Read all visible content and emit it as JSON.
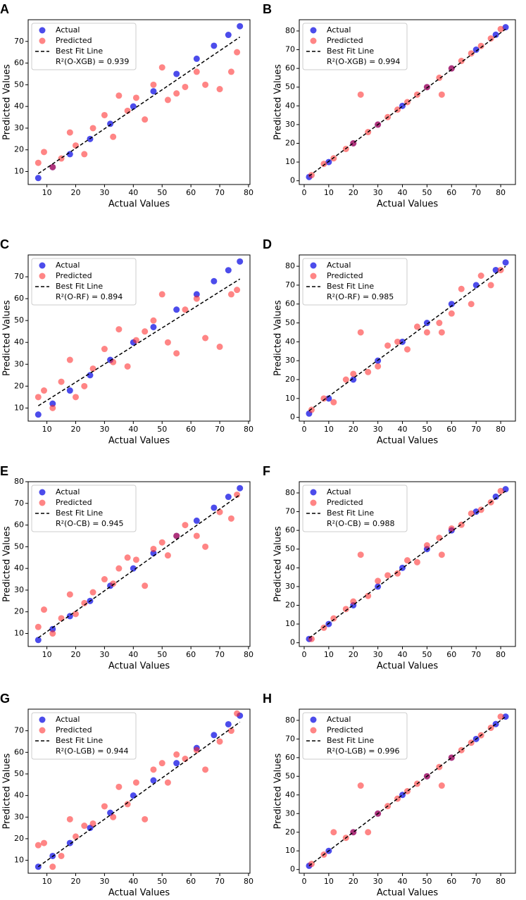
{
  "chart_data": [
    {
      "type": "scatter",
      "panel_label": "A",
      "xlabel": "Actual Values",
      "ylabel": "Predicted Values",
      "annotation": "R²(O-XGB) = 0.939",
      "xlim": [
        3.5,
        80.5
      ],
      "xticks": [
        10,
        20,
        30,
        40,
        50,
        60,
        70,
        80
      ],
      "ylim": [
        4,
        80
      ],
      "yticks": [
        10,
        20,
        30,
        40,
        50,
        60,
        70
      ],
      "legend": "upper left",
      "series": [
        {
          "name": "Actual",
          "kind": "scatter",
          "color": "#1f1fe6",
          "x": [
            7,
            12,
            18,
            25,
            32,
            40,
            47,
            55,
            62,
            68,
            73,
            77
          ],
          "values": [
            7,
            12,
            18,
            25,
            32,
            40,
            47,
            55,
            62,
            68,
            73,
            77
          ]
        },
        {
          "name": "Predicted",
          "kind": "scatter",
          "color": "#ff2020",
          "x": [
            7,
            9,
            12,
            15,
            18,
            20,
            23,
            26,
            30,
            33,
            35,
            38,
            41,
            44,
            47,
            50,
            52,
            55,
            58,
            62,
            65,
            70,
            74,
            76
          ],
          "values": [
            14,
            19,
            12,
            16,
            28,
            22,
            18,
            30,
            36,
            26,
            45,
            38,
            44,
            34,
            50,
            58,
            43,
            46,
            49,
            56,
            50,
            48,
            56,
            65
          ]
        },
        {
          "name": "Best Fit Line",
          "kind": "line",
          "color": "#000000",
          "x": [
            7,
            77
          ],
          "values": [
            9,
            72
          ]
        }
      ]
    },
    {
      "type": "scatter",
      "panel_label": "B",
      "xlabel": "Actual Values",
      "ylabel": "Predicted Values",
      "annotation": "R²(O-XGB) = 0.994",
      "xlim": [
        -2,
        86
      ],
      "xticks": [
        0,
        10,
        20,
        30,
        40,
        50,
        60,
        70,
        80
      ],
      "ylim": [
        -2,
        86
      ],
      "yticks": [
        0,
        10,
        20,
        30,
        40,
        50,
        60,
        70,
        80
      ],
      "legend": "upper left",
      "series": [
        {
          "name": "Actual",
          "kind": "scatter",
          "color": "#1f1fe6",
          "x": [
            2,
            10,
            20,
            30,
            40,
            50,
            60,
            70,
            78,
            82
          ],
          "values": [
            2,
            10,
            20,
            30,
            40,
            50,
            60,
            70,
            78,
            82
          ]
        },
        {
          "name": "Predicted",
          "kind": "scatter",
          "color": "#ff2020",
          "x": [
            3,
            8,
            12,
            17,
            20,
            23,
            26,
            30,
            34,
            38,
            42,
            46,
            50,
            55,
            56,
            60,
            64,
            68,
            72,
            76,
            80
          ],
          "values": [
            3,
            9,
            12,
            17,
            20,
            46,
            26,
            30,
            34,
            38,
            42,
            46,
            50,
            55,
            46,
            60,
            64,
            68,
            72,
            76,
            81
          ]
        },
        {
          "name": "Best Fit Line",
          "kind": "line",
          "color": "#000000",
          "x": [
            2,
            82
          ],
          "values": [
            2.5,
            81
          ]
        }
      ]
    },
    {
      "type": "scatter",
      "panel_label": "C",
      "xlabel": "Actual Values",
      "ylabel": "Predicted Values",
      "annotation": "R²(O-RF) = 0.894",
      "xlim": [
        3.5,
        80.5
      ],
      "xticks": [
        10,
        20,
        30,
        40,
        50,
        60,
        70,
        80
      ],
      "ylim": [
        4,
        80
      ],
      "yticks": [
        10,
        20,
        30,
        40,
        50,
        60,
        70
      ],
      "legend": "upper left",
      "series": [
        {
          "name": "Actual",
          "kind": "scatter",
          "color": "#1f1fe6",
          "x": [
            7,
            12,
            18,
            25,
            32,
            40,
            47,
            55,
            62,
            68,
            73,
            77
          ],
          "values": [
            7,
            12,
            18,
            25,
            32,
            40,
            47,
            55,
            62,
            68,
            73,
            77
          ]
        },
        {
          "name": "Predicted",
          "kind": "scatter",
          "color": "#ff2020",
          "x": [
            7,
            9,
            12,
            15,
            18,
            20,
            23,
            26,
            30,
            33,
            35,
            38,
            41,
            44,
            47,
            50,
            52,
            55,
            58,
            62,
            65,
            70,
            74,
            76
          ],
          "values": [
            15,
            18,
            10,
            22,
            32,
            15,
            20,
            28,
            37,
            31,
            46,
            29,
            41,
            45,
            50,
            62,
            40,
            35,
            55,
            60,
            42,
            38,
            62,
            64
          ]
        },
        {
          "name": "Best Fit Line",
          "kind": "line",
          "color": "#000000",
          "x": [
            7,
            77
          ],
          "values": [
            11,
            69
          ]
        }
      ]
    },
    {
      "type": "scatter",
      "panel_label": "D",
      "xlabel": "Actual Values",
      "ylabel": "Predicted Values",
      "annotation": "R²(O-RF) = 0.985",
      "xlim": [
        -2,
        86
      ],
      "xticks": [
        0,
        10,
        20,
        30,
        40,
        50,
        60,
        70,
        80
      ],
      "ylim": [
        -2,
        86
      ],
      "yticks": [
        0,
        10,
        20,
        30,
        40,
        50,
        60,
        70,
        80
      ],
      "legend": "upper left",
      "series": [
        {
          "name": "Actual",
          "kind": "scatter",
          "color": "#1f1fe6",
          "x": [
            2,
            10,
            20,
            30,
            40,
            50,
            60,
            70,
            78,
            82
          ],
          "values": [
            2,
            10,
            20,
            30,
            40,
            50,
            60,
            70,
            78,
            82
          ]
        },
        {
          "name": "Predicted",
          "kind": "scatter",
          "color": "#ff2020",
          "x": [
            3,
            8,
            12,
            17,
            20,
            23,
            26,
            30,
            34,
            38,
            42,
            46,
            50,
            55,
            56,
            60,
            64,
            68,
            72,
            76,
            80
          ],
          "values": [
            4,
            10,
            8,
            20,
            23,
            45,
            24,
            27,
            38,
            40,
            36,
            48,
            45,
            50,
            45,
            55,
            68,
            60,
            75,
            70,
            78
          ]
        },
        {
          "name": "Best Fit Line",
          "kind": "line",
          "color": "#000000",
          "x": [
            2,
            82
          ],
          "values": [
            3.5,
            80
          ]
        }
      ]
    },
    {
      "type": "scatter",
      "panel_label": "E",
      "xlabel": "Actual Values",
      "ylabel": "Predicted Values",
      "annotation": "R²(O-CB) = 0.945",
      "xlim": [
        3.5,
        80.5
      ],
      "xticks": [
        10,
        20,
        30,
        40,
        50,
        60,
        70,
        80
      ],
      "ylim": [
        4,
        80
      ],
      "yticks": [
        10,
        20,
        30,
        40,
        50,
        60,
        70,
        80
      ],
      "legend": "upper left",
      "series": [
        {
          "name": "Actual",
          "kind": "scatter",
          "color": "#1f1fe6",
          "x": [
            7,
            12,
            18,
            25,
            32,
            40,
            47,
            55,
            62,
            68,
            73,
            77
          ],
          "values": [
            7,
            12,
            18,
            25,
            32,
            40,
            47,
            55,
            62,
            68,
            73,
            77
          ]
        },
        {
          "name": "Predicted",
          "kind": "scatter",
          "color": "#ff2020",
          "x": [
            7,
            9,
            12,
            15,
            18,
            20,
            23,
            26,
            30,
            33,
            35,
            38,
            41,
            44,
            47,
            50,
            52,
            55,
            58,
            62,
            65,
            70,
            74,
            76
          ],
          "values": [
            13,
            21,
            10,
            17,
            28,
            19,
            24,
            29,
            35,
            33,
            40,
            45,
            44,
            32,
            49,
            52,
            46,
            55,
            60,
            55,
            50,
            66,
            63,
            74
          ]
        },
        {
          "name": "Best Fit Line",
          "kind": "line",
          "color": "#000000",
          "x": [
            7,
            77
          ],
          "values": [
            8,
            74
          ]
        }
      ]
    },
    {
      "type": "scatter",
      "panel_label": "F",
      "xlabel": "Actual Values",
      "ylabel": "Predicted Values",
      "annotation": "R²(O-CB) = 0.988",
      "xlim": [
        -2,
        86
      ],
      "xticks": [
        0,
        10,
        20,
        30,
        40,
        50,
        60,
        70,
        80
      ],
      "ylim": [
        -2,
        86
      ],
      "yticks": [
        0,
        10,
        20,
        30,
        40,
        50,
        60,
        70,
        80
      ],
      "legend": "upper left",
      "series": [
        {
          "name": "Actual",
          "kind": "scatter",
          "color": "#1f1fe6",
          "x": [
            2,
            10,
            20,
            30,
            40,
            50,
            60,
            70,
            78,
            82
          ],
          "values": [
            2,
            10,
            20,
            30,
            40,
            50,
            60,
            70,
            78,
            82
          ]
        },
        {
          "name": "Predicted",
          "kind": "scatter",
          "color": "#ff2020",
          "x": [
            3,
            8,
            12,
            17,
            20,
            23,
            26,
            30,
            34,
            38,
            42,
            46,
            50,
            55,
            56,
            60,
            64,
            68,
            72,
            76,
            80
          ],
          "values": [
            2,
            8,
            13,
            18,
            22,
            47,
            25,
            33,
            36,
            37,
            44,
            43,
            52,
            56,
            47,
            61,
            63,
            69,
            71,
            75,
            81
          ]
        },
        {
          "name": "Best Fit Line",
          "kind": "line",
          "color": "#000000",
          "x": [
            2,
            82
          ],
          "values": [
            2.5,
            81
          ]
        }
      ]
    },
    {
      "type": "scatter",
      "panel_label": "G",
      "xlabel": "Actual Values",
      "ylabel": "Predicted Values",
      "annotation": "R²(O-LGB) = 0.944",
      "xlim": [
        3.5,
        80.5
      ],
      "xticks": [
        10,
        20,
        30,
        40,
        50,
        60,
        70,
        80
      ],
      "ylim": [
        4,
        80
      ],
      "yticks": [
        10,
        20,
        30,
        40,
        50,
        60,
        70
      ],
      "legend": "upper left",
      "series": [
        {
          "name": "Actual",
          "kind": "scatter",
          "color": "#1f1fe6",
          "x": [
            7,
            12,
            18,
            25,
            32,
            40,
            47,
            55,
            62,
            68,
            73,
            77
          ],
          "values": [
            7,
            12,
            18,
            25,
            32,
            40,
            47,
            55,
            62,
            68,
            73,
            77
          ]
        },
        {
          "name": "Predicted",
          "kind": "scatter",
          "color": "#ff2020",
          "x": [
            7,
            9,
            12,
            15,
            18,
            20,
            23,
            26,
            30,
            33,
            35,
            38,
            41,
            44,
            47,
            50,
            52,
            55,
            58,
            62,
            65,
            70,
            74,
            76
          ],
          "values": [
            17,
            18,
            7,
            12,
            29,
            21,
            26,
            27,
            35,
            30,
            44,
            36,
            46,
            29,
            52,
            55,
            46,
            59,
            57,
            61,
            52,
            65,
            70,
            78
          ]
        },
        {
          "name": "Best Fit Line",
          "kind": "line",
          "color": "#000000",
          "x": [
            7,
            77
          ],
          "values": [
            7,
            74
          ]
        }
      ]
    },
    {
      "type": "scatter",
      "panel_label": "H",
      "xlabel": "Actual Values",
      "ylabel": "Predicted Values",
      "annotation": "R²(O-LGB) = 0.996",
      "xlim": [
        -2,
        86
      ],
      "xticks": [
        0,
        10,
        20,
        30,
        40,
        50,
        60,
        70,
        80
      ],
      "ylim": [
        -2,
        86
      ],
      "yticks": [
        0,
        10,
        20,
        30,
        40,
        50,
        60,
        70,
        80
      ],
      "legend": "upper left",
      "series": [
        {
          "name": "Actual",
          "kind": "scatter",
          "color": "#1f1fe6",
          "x": [
            2,
            10,
            20,
            30,
            40,
            50,
            60,
            70,
            78,
            82
          ],
          "values": [
            2,
            10,
            20,
            30,
            40,
            50,
            60,
            70,
            78,
            82
          ]
        },
        {
          "name": "Predicted",
          "kind": "scatter",
          "color": "#ff2020",
          "x": [
            3,
            8,
            12,
            17,
            20,
            23,
            26,
            30,
            34,
            38,
            42,
            46,
            50,
            55,
            56,
            60,
            64,
            68,
            72,
            76,
            80
          ],
          "values": [
            3,
            8,
            20,
            17,
            20,
            45,
            20,
            30,
            34,
            38,
            42,
            46,
            50,
            55,
            45,
            60,
            64,
            68,
            72,
            76,
            82
          ]
        },
        {
          "name": "Best Fit Line",
          "kind": "line",
          "color": "#000000",
          "x": [
            2,
            82
          ],
          "values": [
            2,
            82
          ]
        }
      ]
    }
  ]
}
